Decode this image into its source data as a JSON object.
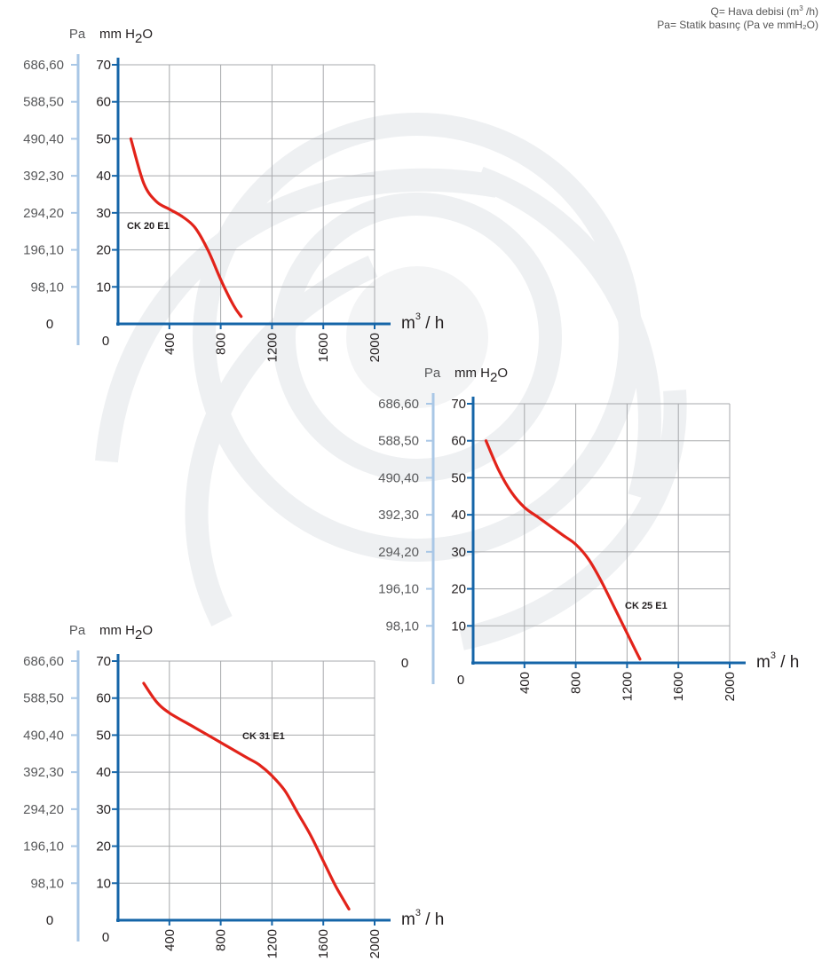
{
  "legend": {
    "q_prefix": "Q= Hava debisi (m",
    "q_sup": "3",
    "q_suffix": " /h)",
    "pa_line": "Pa= Statik basınç  (Pa ve mmH₂O)"
  },
  "colors": {
    "axis": "#1565a8",
    "pa_axis": "#a9c7e6",
    "grid": "#a7a9ac",
    "curve": "#e2231a"
  },
  "chart_data": [
    {
      "type": "line",
      "series": [
        {
          "name": "CK 20 E1",
          "x": [
            100,
            200,
            300,
            400,
            500,
            600,
            700,
            800,
            900,
            960
          ],
          "y": [
            50,
            38,
            33,
            31,
            29,
            26,
            20,
            12,
            5,
            2
          ]
        }
      ],
      "xlim": [
        0,
        2000
      ],
      "ylim": [
        0,
        70
      ],
      "x_ticks": [
        "400",
        "800",
        "1200",
        "1600",
        "2000"
      ],
      "y_ticks": [
        "10",
        "20",
        "30",
        "40",
        "50",
        "60",
        "70"
      ],
      "pa_ticks": [
        "98,10",
        "196,10",
        "294,20",
        "392,30",
        "490,40",
        "588,50",
        "686,60"
      ],
      "pa_label": "Pa",
      "y_label_main": "mm H",
      "y_label_sub": "2",
      "y_label_end": "O",
      "x_unit_main": "m",
      "x_unit_sup": "3",
      "x_unit_end": "/ h",
      "origin_label": "0",
      "pa_zero": "0",
      "grid": true
    },
    {
      "type": "line",
      "series": [
        {
          "name": "CK 25 E1",
          "x": [
            100,
            200,
            300,
            400,
            500,
            600,
            700,
            800,
            900,
            1000,
            1100,
            1200,
            1300
          ],
          "y": [
            60,
            52,
            46,
            42,
            39.5,
            37,
            34.5,
            32,
            28,
            22,
            15,
            8,
            1
          ]
        }
      ],
      "xlim": [
        0,
        2000
      ],
      "ylim": [
        0,
        70
      ],
      "x_ticks": [
        "400",
        "800",
        "1200",
        "1600",
        "2000"
      ],
      "y_ticks": [
        "10",
        "20",
        "30",
        "40",
        "50",
        "60",
        "70"
      ],
      "pa_ticks": [
        "98,10",
        "196,10",
        "294,20",
        "392,30",
        "490,40",
        "588,50",
        "686,60"
      ],
      "pa_label": "Pa",
      "y_label_main": "mm H",
      "y_label_sub": "2",
      "y_label_end": "O",
      "x_unit_main": "m",
      "x_unit_sup": "3",
      "x_unit_end": "/ h",
      "origin_label": "0",
      "pa_zero": "0",
      "grid": true
    },
    {
      "type": "line",
      "series": [
        {
          "name": "CK 31 E1",
          "x": [
            200,
            300,
            400,
            600,
            800,
            1000,
            1100,
            1200,
            1300,
            1400,
            1500,
            1600,
            1700,
            1800
          ],
          "y": [
            64,
            59,
            56,
            52,
            48,
            44,
            42,
            39,
            35,
            29,
            23,
            16,
            9,
            3
          ]
        }
      ],
      "xlim": [
        0,
        2000
      ],
      "ylim": [
        0,
        70
      ],
      "x_ticks": [
        "400",
        "800",
        "1200",
        "1600",
        "2000"
      ],
      "y_ticks": [
        "10",
        "20",
        "30",
        "40",
        "50",
        "60",
        "70"
      ],
      "pa_ticks": [
        "98,10",
        "196,10",
        "294,20",
        "392,30",
        "490,40",
        "588,50",
        "686,60"
      ],
      "pa_label": "Pa",
      "y_label_main": "mm H",
      "y_label_sub": "2",
      "y_label_end": "O",
      "x_unit_main": "m",
      "x_unit_sup": "3",
      "x_unit_end": "/ h",
      "origin_label": "0",
      "pa_zero": "0",
      "grid": true
    }
  ]
}
